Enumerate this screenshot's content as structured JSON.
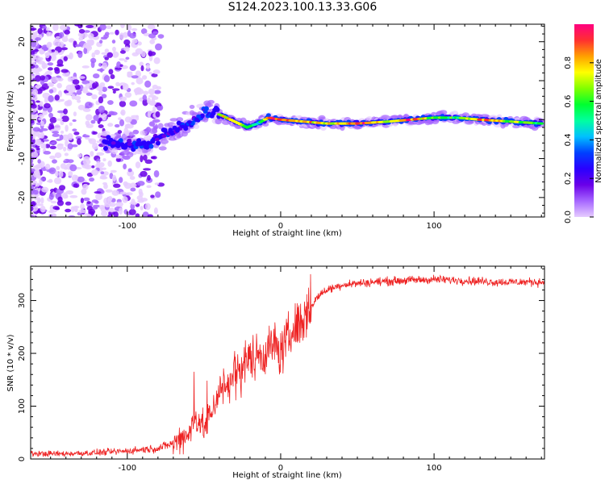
{
  "title": "S124.2023.100.13.33.G06",
  "chart_data": [
    {
      "type": "heatmap",
      "xlabel": "Height of straight line (km)",
      "ylabel": "Frequency (Hz)",
      "xlim": [
        -163,
        172
      ],
      "ylim": [
        -25,
        24.5
      ],
      "x_ticks": [
        -100,
        0,
        100
      ],
      "y_ticks": [
        -20,
        -10,
        0,
        10,
        20
      ],
      "colorbar": {
        "label": "Normalized spectral amplitude",
        "range": [
          0,
          1
        ],
        "ticks": [
          "0.0",
          "0.2",
          "0.4",
          "0.6",
          "0.8"
        ],
        "colors": [
          "#e6ccff",
          "#a666ff",
          "#6a00e8",
          "#2a00ff",
          "#0040ff",
          "#00c0ff",
          "#00ffa0",
          "#00ff30",
          "#80ff00",
          "#ffff00",
          "#ffa000",
          "#ff3030",
          "#ff0080"
        ]
      },
      "ridge": [
        {
          "x": -115,
          "y": -6,
          "amp": 0.2
        },
        {
          "x": -105,
          "y": -6,
          "amp": 0.3
        },
        {
          "x": -95,
          "y": -6.5,
          "amp": 0.2
        },
        {
          "x": -85,
          "y": -6,
          "amp": 0.3
        },
        {
          "x": -75,
          "y": -4,
          "amp": 0.2
        },
        {
          "x": -65,
          "y": -2,
          "amp": 0.3
        },
        {
          "x": -55,
          "y": 0.5,
          "amp": 0.35
        },
        {
          "x": -47,
          "y": 2.5,
          "amp": 0.4
        },
        {
          "x": -38,
          "y": 1,
          "amp": 0.8
        },
        {
          "x": -30,
          "y": -0.5,
          "amp": 0.7
        },
        {
          "x": -22,
          "y": -2,
          "amp": 0.6
        },
        {
          "x": -15,
          "y": -1,
          "amp": 0.5
        },
        {
          "x": -8,
          "y": 0.5,
          "amp": 0.8
        },
        {
          "x": 0,
          "y": 0,
          "amp": 0.9
        },
        {
          "x": 15,
          "y": -0.5,
          "amp": 0.85
        },
        {
          "x": 30,
          "y": -1,
          "amp": 0.7
        },
        {
          "x": 50,
          "y": -1,
          "amp": 0.95
        },
        {
          "x": 70,
          "y": -0.5,
          "amp": 0.7
        },
        {
          "x": 85,
          "y": 0,
          "amp": 0.9
        },
        {
          "x": 100,
          "y": 0.5,
          "amp": 0.6
        },
        {
          "x": 115,
          "y": 0.5,
          "amp": 0.55
        },
        {
          "x": 130,
          "y": 0,
          "amp": 0.85
        },
        {
          "x": 150,
          "y": -0.5,
          "amp": 0.7
        },
        {
          "x": 170,
          "y": -1,
          "amp": 0.6
        }
      ]
    },
    {
      "type": "line",
      "xlabel": "Height of straight line (km)",
      "ylabel": "SNR (10 * v/v)",
      "xlim": [
        -163,
        172
      ],
      "ylim": [
        0,
        365
      ],
      "x_ticks": [
        -100,
        0,
        100
      ],
      "y_ticks": [
        0,
        100,
        200,
        300
      ],
      "color": "#ee2222",
      "series": [
        {
          "x": [
            -163,
            -140,
            -120,
            -100,
            -90,
            -80,
            -70,
            -60,
            -55,
            -50,
            -45,
            -40,
            -35,
            -30,
            -25,
            -20,
            -15,
            -10,
            -5,
            0,
            5,
            10,
            15,
            20,
            25,
            30,
            40,
            60,
            80,
            100,
            120,
            140,
            172
          ],
          "values": [
            10,
            10,
            12,
            15,
            18,
            20,
            30,
            50,
            80,
            60,
            90,
            130,
            140,
            160,
            180,
            190,
            200,
            200,
            220,
            200,
            230,
            250,
            270,
            290,
            310,
            320,
            330,
            335,
            338,
            340,
            338,
            335,
            335
          ]
        }
      ]
    }
  ]
}
